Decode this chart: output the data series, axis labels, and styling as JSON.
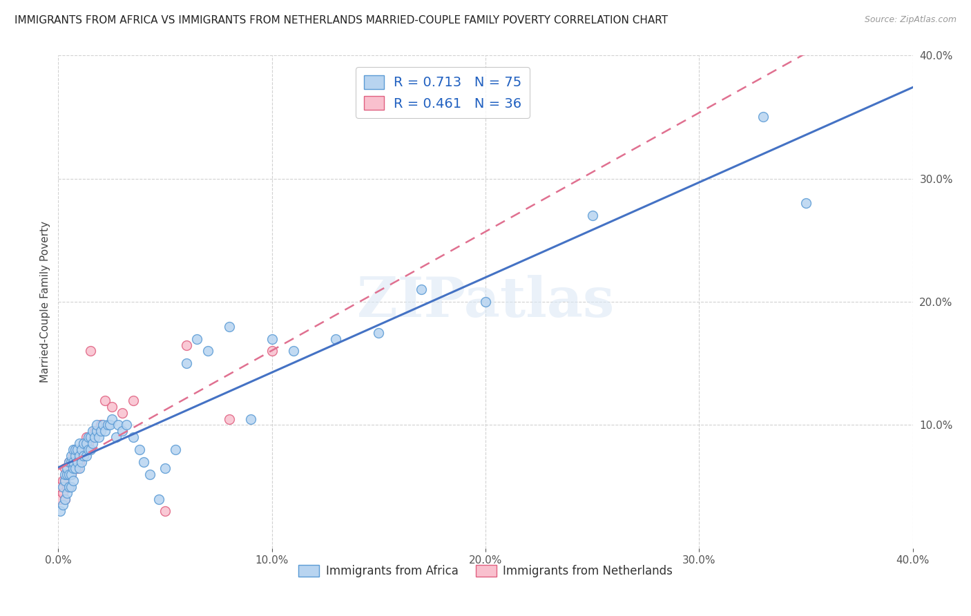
{
  "title": "IMMIGRANTS FROM AFRICA VS IMMIGRANTS FROM NETHERLANDS MARRIED-COUPLE FAMILY POVERTY CORRELATION CHART",
  "source": "Source: ZipAtlas.com",
  "ylabel": "Married-Couple Family Poverty",
  "xlim": [
    0.0,
    0.4
  ],
  "ylim": [
    0.0,
    0.4
  ],
  "xticks": [
    0.0,
    0.1,
    0.2,
    0.3,
    0.4
  ],
  "yticks": [
    0.1,
    0.2,
    0.3,
    0.4
  ],
  "legend_labels": [
    "Immigrants from Africa",
    "Immigrants from Netherlands"
  ],
  "africa_color": "#b8d4f0",
  "africa_edge_color": "#5b9bd5",
  "netherlands_color": "#f9c0ce",
  "netherlands_edge_color": "#e06080",
  "africa_R": 0.713,
  "africa_N": 75,
  "netherlands_R": 0.461,
  "netherlands_N": 36,
  "africa_line_color": "#4472c4",
  "netherlands_line_color": "#e07090",
  "watermark": "ZIPatlas",
  "africa_scatter_x": [
    0.001,
    0.002,
    0.002,
    0.003,
    0.003,
    0.003,
    0.004,
    0.004,
    0.004,
    0.005,
    0.005,
    0.005,
    0.006,
    0.006,
    0.006,
    0.006,
    0.007,
    0.007,
    0.007,
    0.007,
    0.008,
    0.008,
    0.008,
    0.009,
    0.009,
    0.01,
    0.01,
    0.01,
    0.011,
    0.011,
    0.012,
    0.012,
    0.013,
    0.013,
    0.014,
    0.014,
    0.015,
    0.015,
    0.016,
    0.016,
    0.017,
    0.018,
    0.018,
    0.019,
    0.02,
    0.021,
    0.022,
    0.023,
    0.024,
    0.025,
    0.027,
    0.028,
    0.03,
    0.032,
    0.035,
    0.038,
    0.04,
    0.043,
    0.047,
    0.05,
    0.055,
    0.06,
    0.065,
    0.07,
    0.08,
    0.09,
    0.1,
    0.11,
    0.13,
    0.15,
    0.17,
    0.2,
    0.25,
    0.33,
    0.35
  ],
  "africa_scatter_y": [
    0.03,
    0.035,
    0.05,
    0.04,
    0.055,
    0.06,
    0.045,
    0.06,
    0.065,
    0.05,
    0.06,
    0.07,
    0.05,
    0.06,
    0.07,
    0.075,
    0.055,
    0.065,
    0.07,
    0.08,
    0.065,
    0.075,
    0.08,
    0.07,
    0.08,
    0.065,
    0.075,
    0.085,
    0.07,
    0.08,
    0.075,
    0.085,
    0.075,
    0.085,
    0.08,
    0.09,
    0.08,
    0.09,
    0.085,
    0.095,
    0.09,
    0.095,
    0.1,
    0.09,
    0.095,
    0.1,
    0.095,
    0.1,
    0.1,
    0.105,
    0.09,
    0.1,
    0.095,
    0.1,
    0.09,
    0.08,
    0.07,
    0.06,
    0.04,
    0.065,
    0.08,
    0.15,
    0.17,
    0.16,
    0.18,
    0.105,
    0.17,
    0.16,
    0.17,
    0.175,
    0.21,
    0.2,
    0.27,
    0.35,
    0.28
  ],
  "netherlands_scatter_x": [
    0.001,
    0.001,
    0.002,
    0.002,
    0.003,
    0.003,
    0.003,
    0.004,
    0.004,
    0.005,
    0.005,
    0.005,
    0.006,
    0.006,
    0.007,
    0.007,
    0.008,
    0.008,
    0.009,
    0.01,
    0.01,
    0.011,
    0.012,
    0.013,
    0.014,
    0.015,
    0.017,
    0.02,
    0.022,
    0.025,
    0.03,
    0.035,
    0.05,
    0.06,
    0.08,
    0.1
  ],
  "netherlands_scatter_y": [
    0.04,
    0.05,
    0.045,
    0.055,
    0.04,
    0.055,
    0.065,
    0.05,
    0.06,
    0.05,
    0.06,
    0.07,
    0.06,
    0.07,
    0.065,
    0.075,
    0.07,
    0.08,
    0.065,
    0.07,
    0.08,
    0.08,
    0.085,
    0.09,
    0.085,
    0.16,
    0.095,
    0.1,
    0.12,
    0.115,
    0.11,
    0.12,
    0.03,
    0.165,
    0.105,
    0.16
  ]
}
